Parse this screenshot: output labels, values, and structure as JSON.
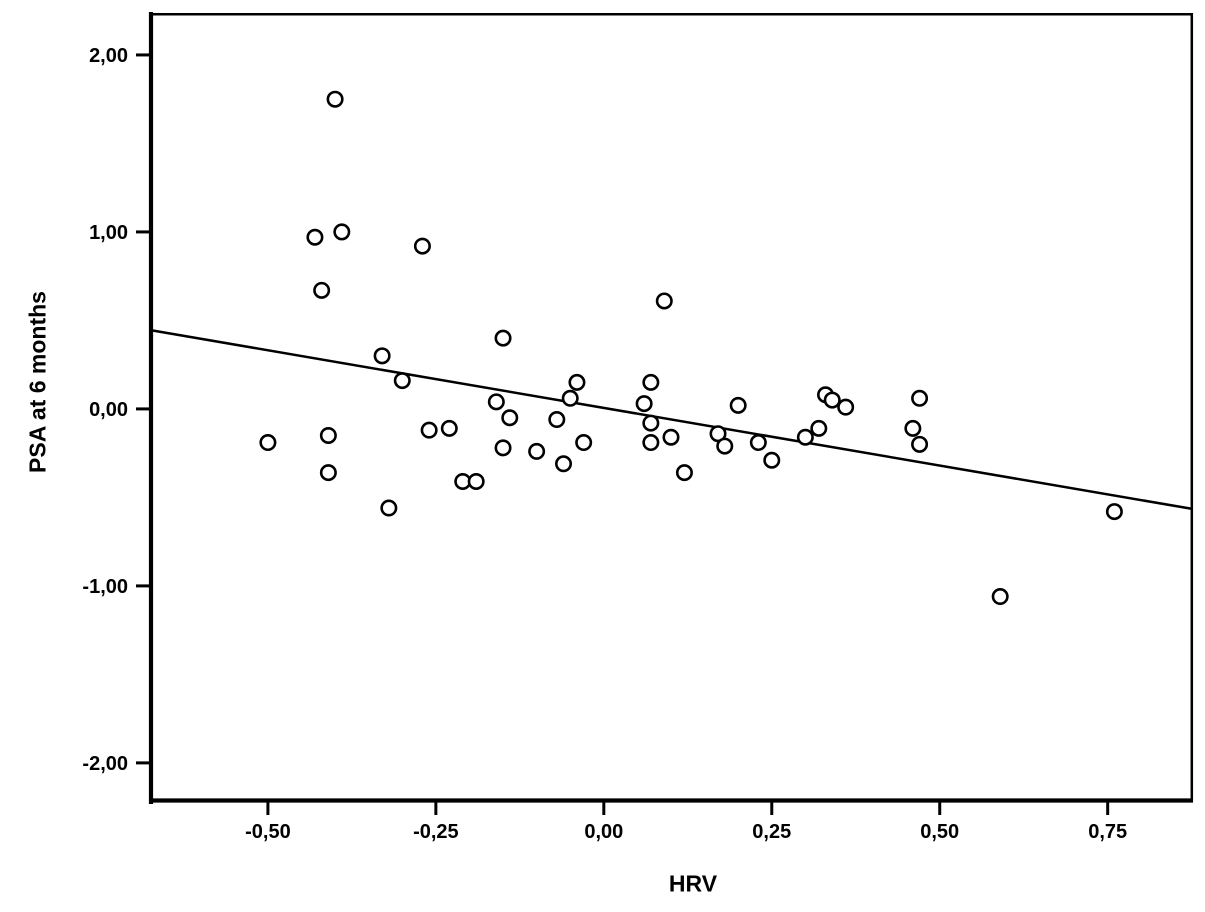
{
  "figure": {
    "background": "#ffffff",
    "line_color": "#000000"
  },
  "chart_data": {
    "type": "scatter",
    "title": "",
    "xlabel": "HRV",
    "ylabel": "PSA at 6 months",
    "grid": false,
    "legend": "none",
    "decimal_separator": ",",
    "x_axis": {
      "min": -0.677,
      "max": 0.877,
      "ticks": [
        -0.5,
        -0.25,
        0.0,
        0.25,
        0.5,
        0.75
      ],
      "tick_labels": [
        "-0,50",
        "-0,25",
        "0,00",
        "0,25",
        "0,50",
        "0,75"
      ]
    },
    "y_axis": {
      "min": -2.221,
      "max": 2.237,
      "ticks": [
        -2.0,
        -1.0,
        0.0,
        1.0,
        2.0
      ],
      "tick_labels": [
        "-2,00",
        "-1,00",
        "0,00",
        "1,00",
        "2,00"
      ]
    },
    "marker": {
      "shape": "open-circle",
      "stroke": "#000000",
      "fill": "#ffffff",
      "radius_px": 7.2,
      "stroke_width_px": 2.6
    },
    "points": [
      [
        -0.4,
        1.75
      ],
      [
        -0.43,
        0.97
      ],
      [
        -0.39,
        1.0
      ],
      [
        -0.27,
        0.92
      ],
      [
        -0.42,
        0.67
      ],
      [
        0.09,
        0.61
      ],
      [
        -0.15,
        0.4
      ],
      [
        -0.33,
        0.3
      ],
      [
        -0.3,
        0.16
      ],
      [
        -0.04,
        0.15
      ],
      [
        0.07,
        0.15
      ],
      [
        -0.05,
        0.06
      ],
      [
        -0.16,
        0.04
      ],
      [
        0.06,
        0.03
      ],
      [
        0.2,
        0.02
      ],
      [
        0.33,
        0.08
      ],
      [
        0.34,
        0.05
      ],
      [
        0.36,
        0.01
      ],
      [
        0.47,
        0.06
      ],
      [
        -0.14,
        -0.05
      ],
      [
        -0.07,
        -0.06
      ],
      [
        0.07,
        -0.08
      ],
      [
        0.46,
        -0.11
      ],
      [
        -0.26,
        -0.12
      ],
      [
        -0.23,
        -0.11
      ],
      [
        -0.41,
        -0.15
      ],
      [
        -0.03,
        -0.19
      ],
      [
        0.17,
        -0.14
      ],
      [
        0.3,
        -0.16
      ],
      [
        0.32,
        -0.11
      ],
      [
        -0.5,
        -0.19
      ],
      [
        -0.15,
        -0.22
      ],
      [
        -0.1,
        -0.24
      ],
      [
        0.07,
        -0.19
      ],
      [
        0.1,
        -0.16
      ],
      [
        0.18,
        -0.21
      ],
      [
        0.23,
        -0.19
      ],
      [
        0.47,
        -0.2
      ],
      [
        -0.41,
        -0.36
      ],
      [
        -0.06,
        -0.31
      ],
      [
        0.12,
        -0.36
      ],
      [
        0.25,
        -0.29
      ],
      [
        -0.21,
        -0.41
      ],
      [
        -0.19,
        -0.41
      ],
      [
        -0.32,
        -0.56
      ],
      [
        0.76,
        -0.58
      ],
      [
        0.59,
        -1.06
      ]
    ],
    "fit_line": {
      "x1": -0.676,
      "y1": 0.446,
      "x2": 0.876,
      "y2": -0.565
    }
  }
}
